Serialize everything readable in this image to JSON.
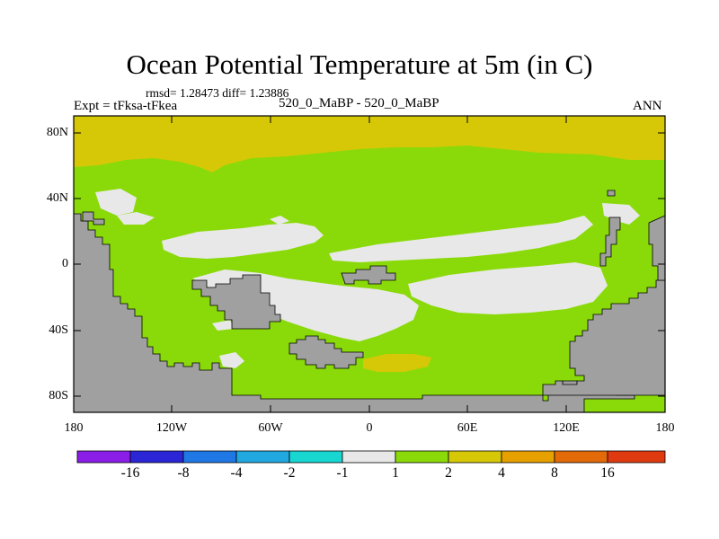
{
  "title": "Ocean Potential Temperature at 5m (in C)",
  "stats": "rmsd= 1.28473 diff= 1.23886",
  "experiment": "Expt = tFksa-tFkea",
  "case": "520_0_MaBP - 520_0_MaBP",
  "season": "ANN",
  "y_ticks": [
    "80N",
    "40N",
    "0",
    "40S",
    "80S"
  ],
  "x_ticks": [
    "180",
    "120W",
    "60W",
    "0",
    "60E",
    "120E",
    "180"
  ],
  "colorbar": {
    "colors": [
      "#8a1ee6",
      "#2a26d6",
      "#1f78e6",
      "#22a8e0",
      "#18d6d0",
      "#e8e8e8",
      "#8ada0a",
      "#d6c806",
      "#e6a000",
      "#e26a08",
      "#e03a10"
    ],
    "labels": [
      "-16",
      "-8",
      "-4",
      "-2",
      "-1",
      "1",
      "2",
      "4",
      "8",
      "16"
    ]
  },
  "map_colors": {
    "land": "#a0a0a0",
    "near_zero": "#e8e8e8",
    "band_1_2": "#8ada0a",
    "band_2_4": "#d6c806"
  }
}
